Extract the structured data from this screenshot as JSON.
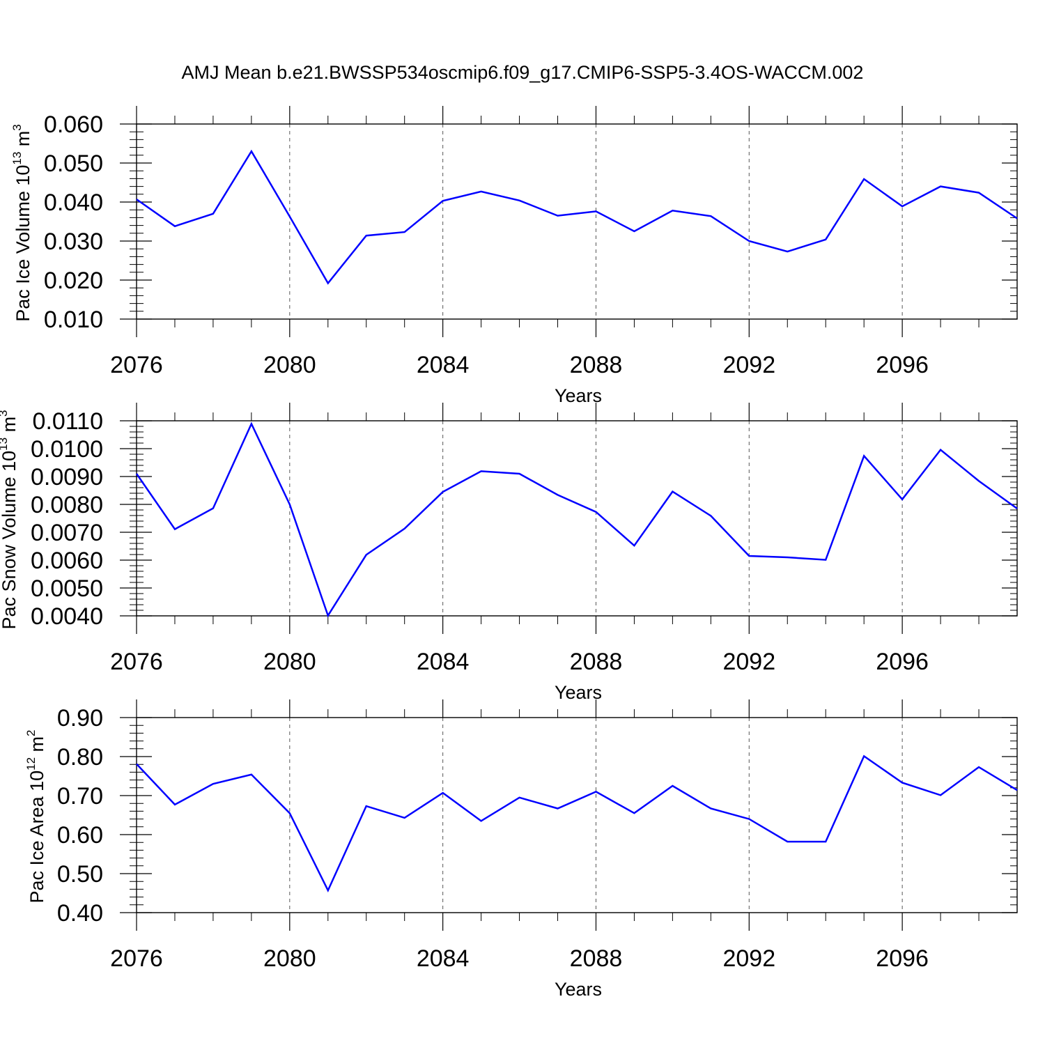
{
  "title": "AMJ Mean b.e21.BWSSP534oscmip6.f09_g17.CMIP6-SSP5-3.4OS-WACCM.002",
  "colors": {
    "series": "#0000ff",
    "axis": "#000000",
    "grid": "#555555"
  },
  "chart_data": [
    {
      "type": "line",
      "ylabel": {
        "main": "Pac Ice Volume 10",
        "sup": "13",
        "unit": " m",
        "unit_sup": "3"
      },
      "xlabel": "Years",
      "xlim": [
        2076,
        2099
      ],
      "ylim": [
        0.01,
        0.06
      ],
      "y_ticks": [
        0.01,
        0.02,
        0.03,
        0.04,
        0.05,
        0.06
      ],
      "y_tick_labels": [
        "0.010",
        "0.020",
        "0.030",
        "0.040",
        "0.050",
        "0.060"
      ],
      "x_ticks": [
        2076,
        2080,
        2084,
        2088,
        2092,
        2096
      ],
      "x_tick_labels": [
        "2076",
        "2080",
        "2084",
        "2088",
        "2092",
        "2096"
      ],
      "grid": "vertical dashed at major x ticks",
      "x": [
        2076,
        2077,
        2078,
        2079,
        2080,
        2081,
        2082,
        2083,
        2084,
        2085,
        2086,
        2087,
        2088,
        2089,
        2090,
        2091,
        2092,
        2093,
        2094,
        2095,
        2096,
        2097,
        2098,
        2099
      ],
      "y": [
        0.0407,
        0.0338,
        0.037,
        0.053,
        0.0363,
        0.0192,
        0.0314,
        0.0323,
        0.0403,
        0.0427,
        0.0404,
        0.0365,
        0.0376,
        0.0325,
        0.0378,
        0.0364,
        0.03,
        0.0273,
        0.0304,
        0.0459,
        0.0389,
        0.044,
        0.0424,
        0.0358
      ]
    },
    {
      "type": "line",
      "ylabel": {
        "main": "Pac Snow Volume 10",
        "sup": "13",
        "unit": " m",
        "unit_sup": "3"
      },
      "xlabel": "Years",
      "xlim": [
        2076,
        2099
      ],
      "ylim": [
        0.004,
        0.011
      ],
      "y_ticks": [
        0.004,
        0.005,
        0.006,
        0.007,
        0.008,
        0.009,
        0.01,
        0.011
      ],
      "y_tick_labels": [
        "0.0040",
        "0.0050",
        "0.0060",
        "0.0070",
        "0.0080",
        "0.0090",
        "0.0100",
        "0.0110"
      ],
      "x_ticks": [
        2076,
        2080,
        2084,
        2088,
        2092,
        2096
      ],
      "x_tick_labels": [
        "2076",
        "2080",
        "2084",
        "2088",
        "2092",
        "2096"
      ],
      "grid": "vertical dashed at major x ticks",
      "x": [
        2076,
        2077,
        2078,
        2079,
        2080,
        2081,
        2082,
        2083,
        2084,
        2085,
        2086,
        2087,
        2088,
        2089,
        2090,
        2091,
        2092,
        2093,
        2094,
        2095,
        2096,
        2097,
        2098,
        2099
      ],
      "y": [
        0.0091,
        0.00711,
        0.00786,
        0.01089,
        0.008,
        0.00401,
        0.00619,
        0.00713,
        0.00845,
        0.00919,
        0.0091,
        0.00834,
        0.00773,
        0.00652,
        0.00846,
        0.00759,
        0.00615,
        0.0061,
        0.00601,
        0.00974,
        0.00818,
        0.00996,
        0.00884,
        0.00785
      ]
    },
    {
      "type": "line",
      "ylabel": {
        "main": "Pac Ice Area 10",
        "sup": "12",
        "unit": " m",
        "unit_sup": "2"
      },
      "xlabel": "Years",
      "xlim": [
        2076,
        2099
      ],
      "ylim": [
        0.4,
        0.9
      ],
      "y_ticks": [
        0.4,
        0.5,
        0.6,
        0.7,
        0.8,
        0.9
      ],
      "y_tick_labels": [
        "0.40",
        "0.50",
        "0.60",
        "0.70",
        "0.80",
        "0.90"
      ],
      "x_ticks": [
        2076,
        2080,
        2084,
        2088,
        2092,
        2096
      ],
      "x_tick_labels": [
        "2076",
        "2080",
        "2084",
        "2088",
        "2092",
        "2096"
      ],
      "grid": "vertical dashed at major x ticks",
      "x": [
        2076,
        2077,
        2078,
        2079,
        2080,
        2081,
        2082,
        2083,
        2084,
        2085,
        2086,
        2087,
        2088,
        2089,
        2090,
        2091,
        2092,
        2093,
        2094,
        2095,
        2096,
        2097,
        2098,
        2099
      ],
      "y": [
        0.781,
        0.677,
        0.73,
        0.754,
        0.655,
        0.457,
        0.673,
        0.643,
        0.707,
        0.635,
        0.695,
        0.667,
        0.71,
        0.655,
        0.725,
        0.667,
        0.64,
        0.582,
        0.582,
        0.801,
        0.733,
        0.701,
        0.773,
        0.714
      ]
    }
  ]
}
